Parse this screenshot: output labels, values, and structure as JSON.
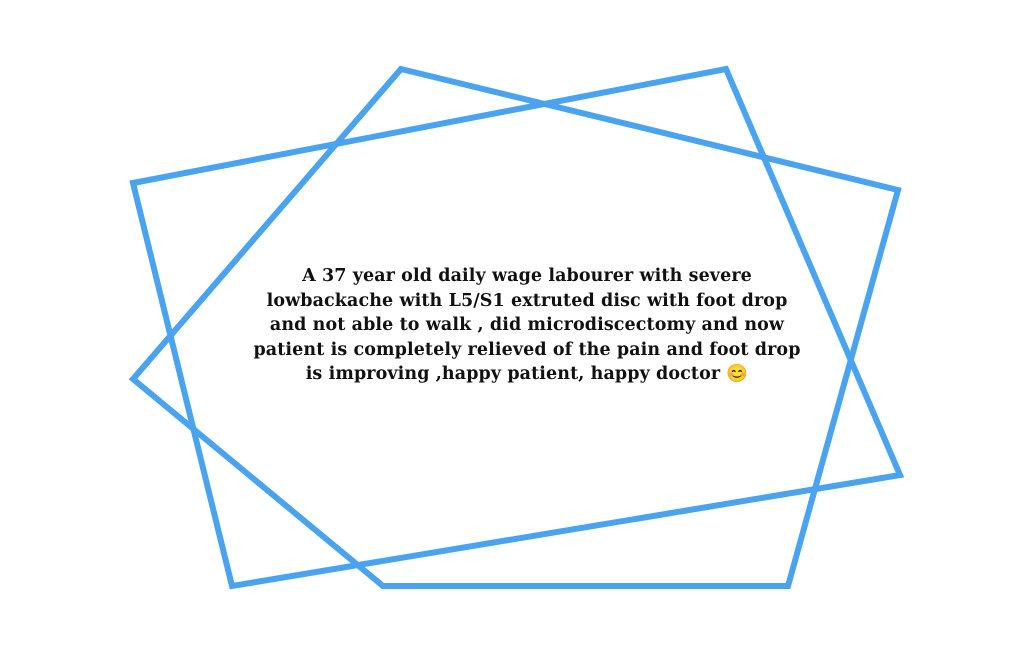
{
  "colors": {
    "frame_stroke": "#4aa3f0",
    "text": "#111111",
    "background": "#ffffff"
  },
  "quote": {
    "text": "A 37 year old daily wage labourer with severe lowbackache with L5/S1 extruted disc with foot drop and not able to walk , did microdiscectomy and now patient is completely relieved of the pain and foot drop is improving ,happy patient, happy doctor 😊"
  }
}
